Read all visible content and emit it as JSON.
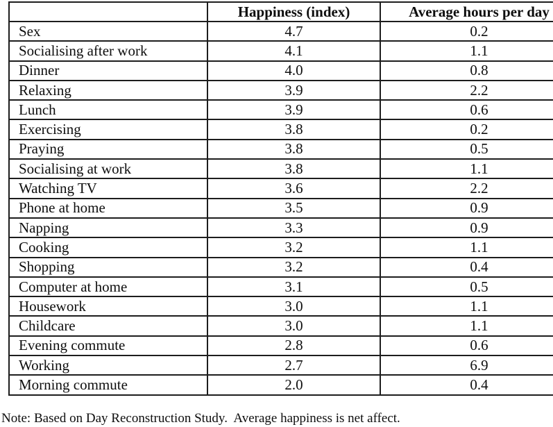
{
  "table": {
    "headers": [
      "",
      "Happiness (index)",
      "Average hours per day"
    ],
    "rows": [
      {
        "activity": "Sex",
        "happiness": "4.7",
        "hours": "0.2"
      },
      {
        "activity": "Socialising after work",
        "happiness": "4.1",
        "hours": "1.1"
      },
      {
        "activity": "Dinner",
        "happiness": "4.0",
        "hours": "0.8"
      },
      {
        "activity": "Relaxing",
        "happiness": "3.9",
        "hours": "2.2"
      },
      {
        "activity": "Lunch",
        "happiness": "3.9",
        "hours": "0.6"
      },
      {
        "activity": "Exercising",
        "happiness": "3.8",
        "hours": "0.2"
      },
      {
        "activity": "Praying",
        "happiness": "3.8",
        "hours": "0.5"
      },
      {
        "activity": "Socialising at work",
        "happiness": "3.8",
        "hours": "1.1"
      },
      {
        "activity": "Watching TV",
        "happiness": "3.6",
        "hours": "2.2"
      },
      {
        "activity": "Phone at home",
        "happiness": "3.5",
        "hours": "0.9"
      },
      {
        "activity": "Napping",
        "happiness": "3.3",
        "hours": "0.9"
      },
      {
        "activity": "Cooking",
        "happiness": "3.2",
        "hours": "1.1"
      },
      {
        "activity": "Shopping",
        "happiness": "3.2",
        "hours": "0.4"
      },
      {
        "activity": "Computer at home",
        "happiness": "3.1",
        "hours": "0.5"
      },
      {
        "activity": "Housework",
        "happiness": "3.0",
        "hours": "1.1"
      },
      {
        "activity": "Childcare",
        "happiness": "3.0",
        "hours": "1.1"
      },
      {
        "activity": "Evening commute",
        "happiness": "2.8",
        "hours": "0.6"
      },
      {
        "activity": "Working",
        "happiness": "2.7",
        "hours": "6.9"
      },
      {
        "activity": "Morning commute",
        "happiness": "2.0",
        "hours": "0.4"
      }
    ]
  },
  "note": "Note: Based on Day Reconstruction Study.  Average happiness is net affect.",
  "colors": {
    "background": "#ffffff",
    "text": "#0e0e0e",
    "border": "#1d1d1d"
  }
}
